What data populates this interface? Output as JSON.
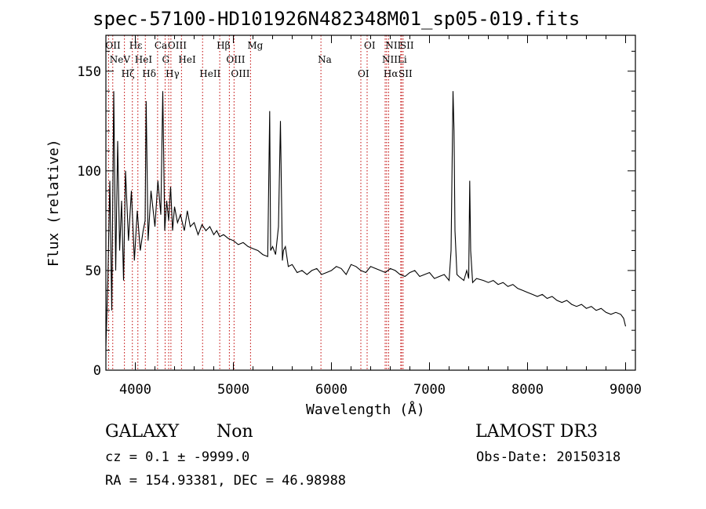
{
  "chart_data": {
    "type": "line",
    "title": "spec-57100-HD101926N482348M01_sp05-019.fits",
    "xlabel": "Wavelength (Å)",
    "ylabel": "Flux (relative)",
    "xlim": [
      3700,
      9100
    ],
    "ylim": [
      0,
      168
    ],
    "xticks": [
      4000,
      5000,
      6000,
      7000,
      8000,
      9000
    ],
    "yticks": [
      0,
      50,
      100,
      150
    ],
    "series": [
      {
        "name": "flux",
        "x": [
          3700,
          3720,
          3740,
          3760,
          3780,
          3800,
          3820,
          3840,
          3860,
          3880,
          3900,
          3930,
          3960,
          3990,
          4020,
          4050,
          4080,
          4100,
          4110,
          4130,
          4160,
          4200,
          4230,
          4260,
          4280,
          4300,
          4320,
          4340,
          4360,
          4380,
          4400,
          4430,
          4460,
          4500,
          4530,
          4560,
          4600,
          4640,
          4680,
          4720,
          4760,
          4800,
          4830,
          4860,
          4900,
          4950,
          5000,
          5050,
          5100,
          5150,
          5200,
          5250,
          5300,
          5350,
          5370,
          5380,
          5400,
          5430,
          5460,
          5480,
          5500,
          5510,
          5530,
          5560,
          5600,
          5650,
          5700,
          5750,
          5800,
          5850,
          5900,
          5950,
          6000,
          6050,
          6100,
          6150,
          6200,
          6250,
          6300,
          6350,
          6400,
          6450,
          6500,
          6550,
          6600,
          6650,
          6700,
          6750,
          6800,
          6850,
          6900,
          6950,
          7000,
          7050,
          7100,
          7150,
          7200,
          7220,
          7240,
          7250,
          7260,
          7280,
          7300,
          7350,
          7380,
          7400,
          7410,
          7420,
          7440,
          7480,
          7550,
          7600,
          7650,
          7700,
          7750,
          7800,
          7850,
          7900,
          7950,
          8000,
          8050,
          8100,
          8150,
          8200,
          8250,
          8300,
          8350,
          8400,
          8450,
          8500,
          8550,
          8600,
          8650,
          8700,
          8750,
          8800,
          8850,
          8900,
          8950,
          8980,
          9000
        ],
        "y": [
          12,
          45,
          95,
          30,
          140,
          50,
          115,
          60,
          85,
          45,
          100,
          65,
          90,
          55,
          80,
          60,
          70,
          75,
          135,
          65,
          90,
          72,
          95,
          78,
          140,
          70,
          85,
          75,
          92,
          70,
          82,
          74,
          78,
          70,
          80,
          72,
          74,
          68,
          73,
          70,
          72,
          68,
          70,
          67,
          68,
          66,
          65,
          63,
          64,
          62,
          61,
          60,
          58,
          57,
          130,
          60,
          62,
          58,
          72,
          125,
          55,
          60,
          62,
          52,
          53,
          49,
          50,
          48,
          50,
          51,
          48,
          49,
          50,
          52,
          51,
          48,
          53,
          52,
          50,
          49,
          52,
          51,
          50,
          49,
          51,
          50,
          48,
          47,
          49,
          50,
          47,
          48,
          49,
          46,
          47,
          48,
          45,
          60,
          140,
          120,
          70,
          48,
          47,
          45,
          50,
          46,
          95,
          60,
          44,
          46,
          45,
          44,
          45,
          43,
          44,
          42,
          43,
          41,
          40,
          39,
          38,
          37,
          38,
          36,
          37,
          35,
          34,
          35,
          33,
          32,
          33,
          31,
          32,
          30,
          31,
          29,
          28,
          29,
          28,
          26,
          22
        ]
      }
    ],
    "lines": [
      {
        "x": 3727,
        "label": "OII"
      },
      {
        "x": 3770,
        "label": "NeV"
      },
      {
        "x": 3889,
        "label": "Hζ"
      },
      {
        "x": 3970,
        "label": "Hε"
      },
      {
        "x": 4026,
        "label": "HeI"
      },
      {
        "x": 4102,
        "label": "Hδ"
      },
      {
        "x": 4227,
        "label": "Ca"
      },
      {
        "x": 4304,
        "label": "G"
      },
      {
        "x": 4340,
        "label": "Hγ"
      },
      {
        "x": 4363,
        "label": "OIII"
      },
      {
        "x": 4471,
        "label": "HeI"
      },
      {
        "x": 4686,
        "label": "HeII"
      },
      {
        "x": 4861,
        "label": "Hβ"
      },
      {
        "x": 4959,
        "label": "OIII"
      },
      {
        "x": 5007,
        "label": "OIII"
      },
      {
        "x": 5175,
        "label": "Mg"
      },
      {
        "x": 5893,
        "label": "Na"
      },
      {
        "x": 6300,
        "label": "OI"
      },
      {
        "x": 6364,
        "label": "OI"
      },
      {
        "x": 6548,
        "label": "NII"
      },
      {
        "x": 6563,
        "label": "Hα"
      },
      {
        "x": 6583,
        "label": "NII"
      },
      {
        "x": 6707,
        "label": "Li"
      },
      {
        "x": 6716,
        "label": "SII"
      },
      {
        "x": 6731,
        "label": "SII"
      }
    ]
  },
  "footer": {
    "class_label": "GALAXY",
    "subclass": "Non",
    "survey": "LAMOST DR3",
    "cz_line": "cz = 0.1 ± -9999.0",
    "obs_date": "Obs-Date: 20150318",
    "radec": "RA = 154.93381, DEC =  46.98988"
  },
  "colors": {
    "axis": "#000000",
    "spectrum": "#000000",
    "line_marker": "#c00000"
  }
}
